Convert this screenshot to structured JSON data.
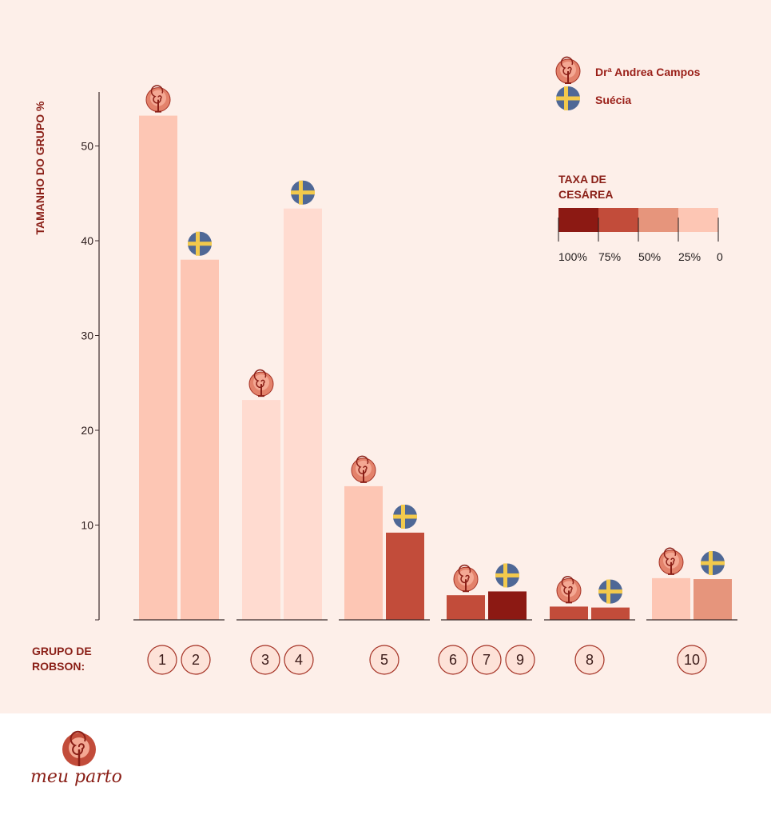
{
  "chart_data": {
    "type": "bar",
    "ylabel": "TAMANHO DO GRUPO  %",
    "yticks": [
      10,
      20,
      30,
      40,
      50
    ],
    "ylim": [
      0,
      55
    ],
    "grid": false,
    "xlabel": "GRUPO DE ROBSON:",
    "x_group_line1": "GRUPO DE",
    "x_group_line2": "ROBSON:",
    "series": [
      {
        "name": "Drª Andrea Campos",
        "icon": "spiral-icon"
      },
      {
        "name": "Suécia",
        "icon": "sweden-flag-icon"
      }
    ],
    "groups": [
      {
        "labels": [
          "1",
          "2"
        ],
        "bars": [
          {
            "series": 0,
            "value": 53.2,
            "rate_color": "#fdc6b4"
          },
          {
            "series": 1,
            "value": 38.0,
            "rate_color": "#fdc6b4"
          }
        ]
      },
      {
        "labels": [
          "3",
          "4"
        ],
        "bars": [
          {
            "series": 0,
            "value": 23.2,
            "rate_color": "#ffdbd0"
          },
          {
            "series": 1,
            "value": 43.4,
            "rate_color": "#ffdbd0"
          }
        ]
      },
      {
        "labels": [
          "5"
        ],
        "bars": [
          {
            "series": 0,
            "value": 14.1,
            "rate_color": "#fdc6b4"
          },
          {
            "series": 1,
            "value": 9.2,
            "rate_color": "#c24c3a"
          }
        ]
      },
      {
        "labels": [
          "6",
          "7",
          "9"
        ],
        "bars": [
          {
            "series": 0,
            "value": 2.6,
            "rate_color": "#c24c3a"
          },
          {
            "series": 1,
            "value": 3.0,
            "rate_color": "#8c1913"
          }
        ]
      },
      {
        "labels": [
          "8"
        ],
        "bars": [
          {
            "series": 0,
            "value": 1.4,
            "rate_color": "#c24c3a"
          },
          {
            "series": 1,
            "value": 1.3,
            "rate_color": "#c24c3a"
          }
        ]
      },
      {
        "labels": [
          "10"
        ],
        "bars": [
          {
            "series": 0,
            "value": 4.4,
            "rate_color": "#fdc6b4"
          },
          {
            "series": 1,
            "value": 4.3,
            "rate_color": "#e6957c"
          }
        ]
      }
    ],
    "legend_position": "top-right"
  },
  "rate_legend": {
    "title_line1": "TAXA DE",
    "title_line2": "CESÁREA",
    "segments": [
      {
        "label": "100%",
        "color": "#8c1913"
      },
      {
        "label": "75%",
        "color": "#c24c3a"
      },
      {
        "label": "50%",
        "color": "#e6957c"
      },
      {
        "label": "25%",
        "color": "#fdc6b4"
      }
    ],
    "end_label": "0"
  },
  "brand": {
    "name": "meu parto",
    "color": "#8a1f17"
  },
  "colors": {
    "panel_bg": "#fdefe9",
    "axis": "#3a2a2a",
    "circle_fill": "#fde2d8",
    "circle_stroke": "#a53225",
    "flag_blue": "#4f6896",
    "flag_yellow": "#f2c94c"
  }
}
